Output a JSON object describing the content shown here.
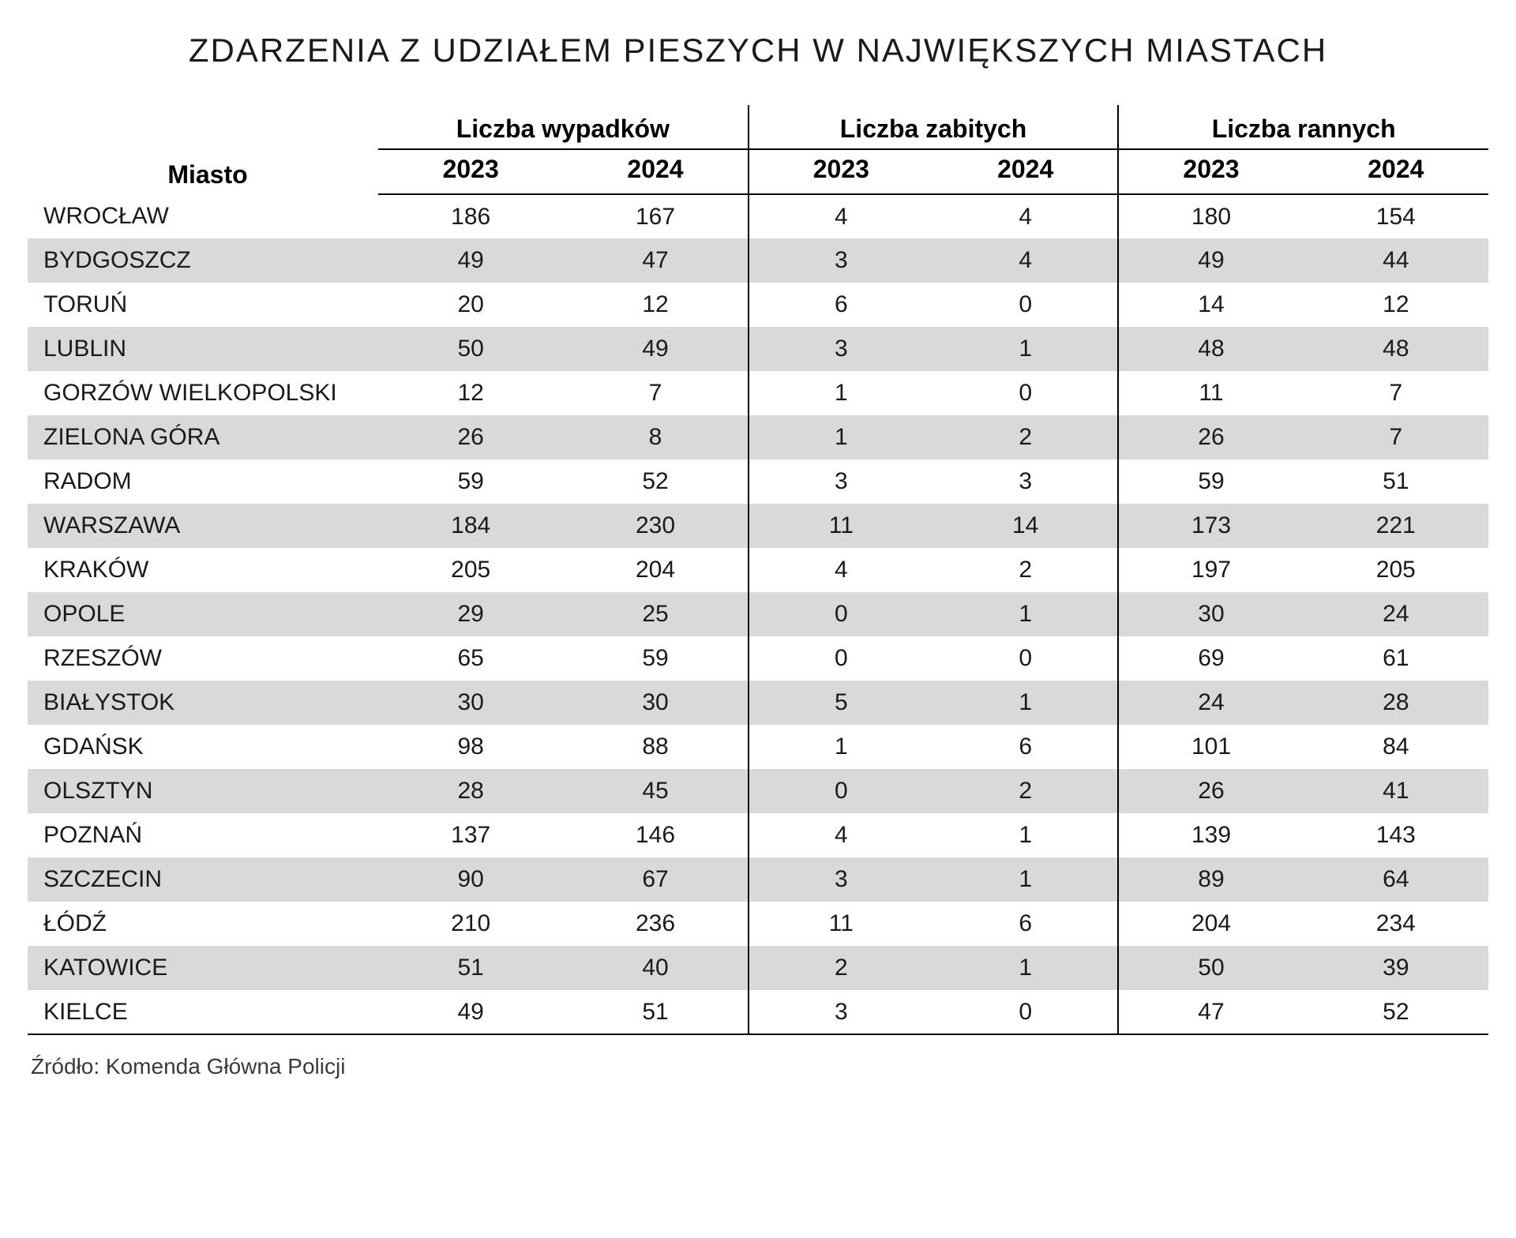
{
  "title": "ZDARZENIA Z UDZIAŁEM PIESZYCH W NAJWIĘKSZYCH MIASTACH",
  "source": "Źródło: Komenda Główna Policji",
  "table": {
    "type": "table",
    "background_color": "#ffffff",
    "stripe_color": "#d9d9d9",
    "border_color": "#000000",
    "text_color": "#1a1a1a",
    "title_fontsize": 42,
    "header_fontsize": 32,
    "cell_fontsize": 30,
    "source_fontsize": 28,
    "city_header": "Miasto",
    "groups": [
      {
        "label": "Liczba wypadków",
        "years": [
          "2023",
          "2024"
        ]
      },
      {
        "label": "Liczba zabitych",
        "years": [
          "2023",
          "2024"
        ]
      },
      {
        "label": "Liczba rannych",
        "years": [
          "2023",
          "2024"
        ]
      }
    ],
    "rows": [
      {
        "city": "WROCŁAW",
        "values": [
          186,
          167,
          4,
          4,
          180,
          154
        ]
      },
      {
        "city": "BYDGOSZCZ",
        "values": [
          49,
          47,
          3,
          4,
          49,
          44
        ]
      },
      {
        "city": "TORUŃ",
        "values": [
          20,
          12,
          6,
          0,
          14,
          12
        ]
      },
      {
        "city": "LUBLIN",
        "values": [
          50,
          49,
          3,
          1,
          48,
          48
        ]
      },
      {
        "city": "GORZÓW WIELKOPOLSKI",
        "values": [
          12,
          7,
          1,
          0,
          11,
          7
        ]
      },
      {
        "city": "ZIELONA GÓRA",
        "values": [
          26,
          8,
          1,
          2,
          26,
          7
        ]
      },
      {
        "city": "RADOM",
        "values": [
          59,
          52,
          3,
          3,
          59,
          51
        ]
      },
      {
        "city": "WARSZAWA",
        "values": [
          184,
          230,
          11,
          14,
          173,
          221
        ]
      },
      {
        "city": "KRAKÓW",
        "values": [
          205,
          204,
          4,
          2,
          197,
          205
        ]
      },
      {
        "city": "OPOLE",
        "values": [
          29,
          25,
          0,
          1,
          30,
          24
        ]
      },
      {
        "city": "RZESZÓW",
        "values": [
          65,
          59,
          0,
          0,
          69,
          61
        ]
      },
      {
        "city": "BIAŁYSTOK",
        "values": [
          30,
          30,
          5,
          1,
          24,
          28
        ]
      },
      {
        "city": "GDAŃSK",
        "values": [
          98,
          88,
          1,
          6,
          101,
          84
        ]
      },
      {
        "city": "OLSZTYN",
        "values": [
          28,
          45,
          0,
          2,
          26,
          41
        ]
      },
      {
        "city": "POZNAŃ",
        "values": [
          137,
          146,
          4,
          1,
          139,
          143
        ]
      },
      {
        "city": "SZCZECIN",
        "values": [
          90,
          67,
          3,
          1,
          89,
          64
        ]
      },
      {
        "city": "ŁÓDŹ",
        "values": [
          210,
          236,
          11,
          6,
          204,
          234
        ]
      },
      {
        "city": "KATOWICE",
        "values": [
          51,
          40,
          2,
          1,
          50,
          39
        ]
      },
      {
        "city": "KIELCE",
        "values": [
          49,
          51,
          3,
          0,
          47,
          52
        ]
      }
    ]
  }
}
